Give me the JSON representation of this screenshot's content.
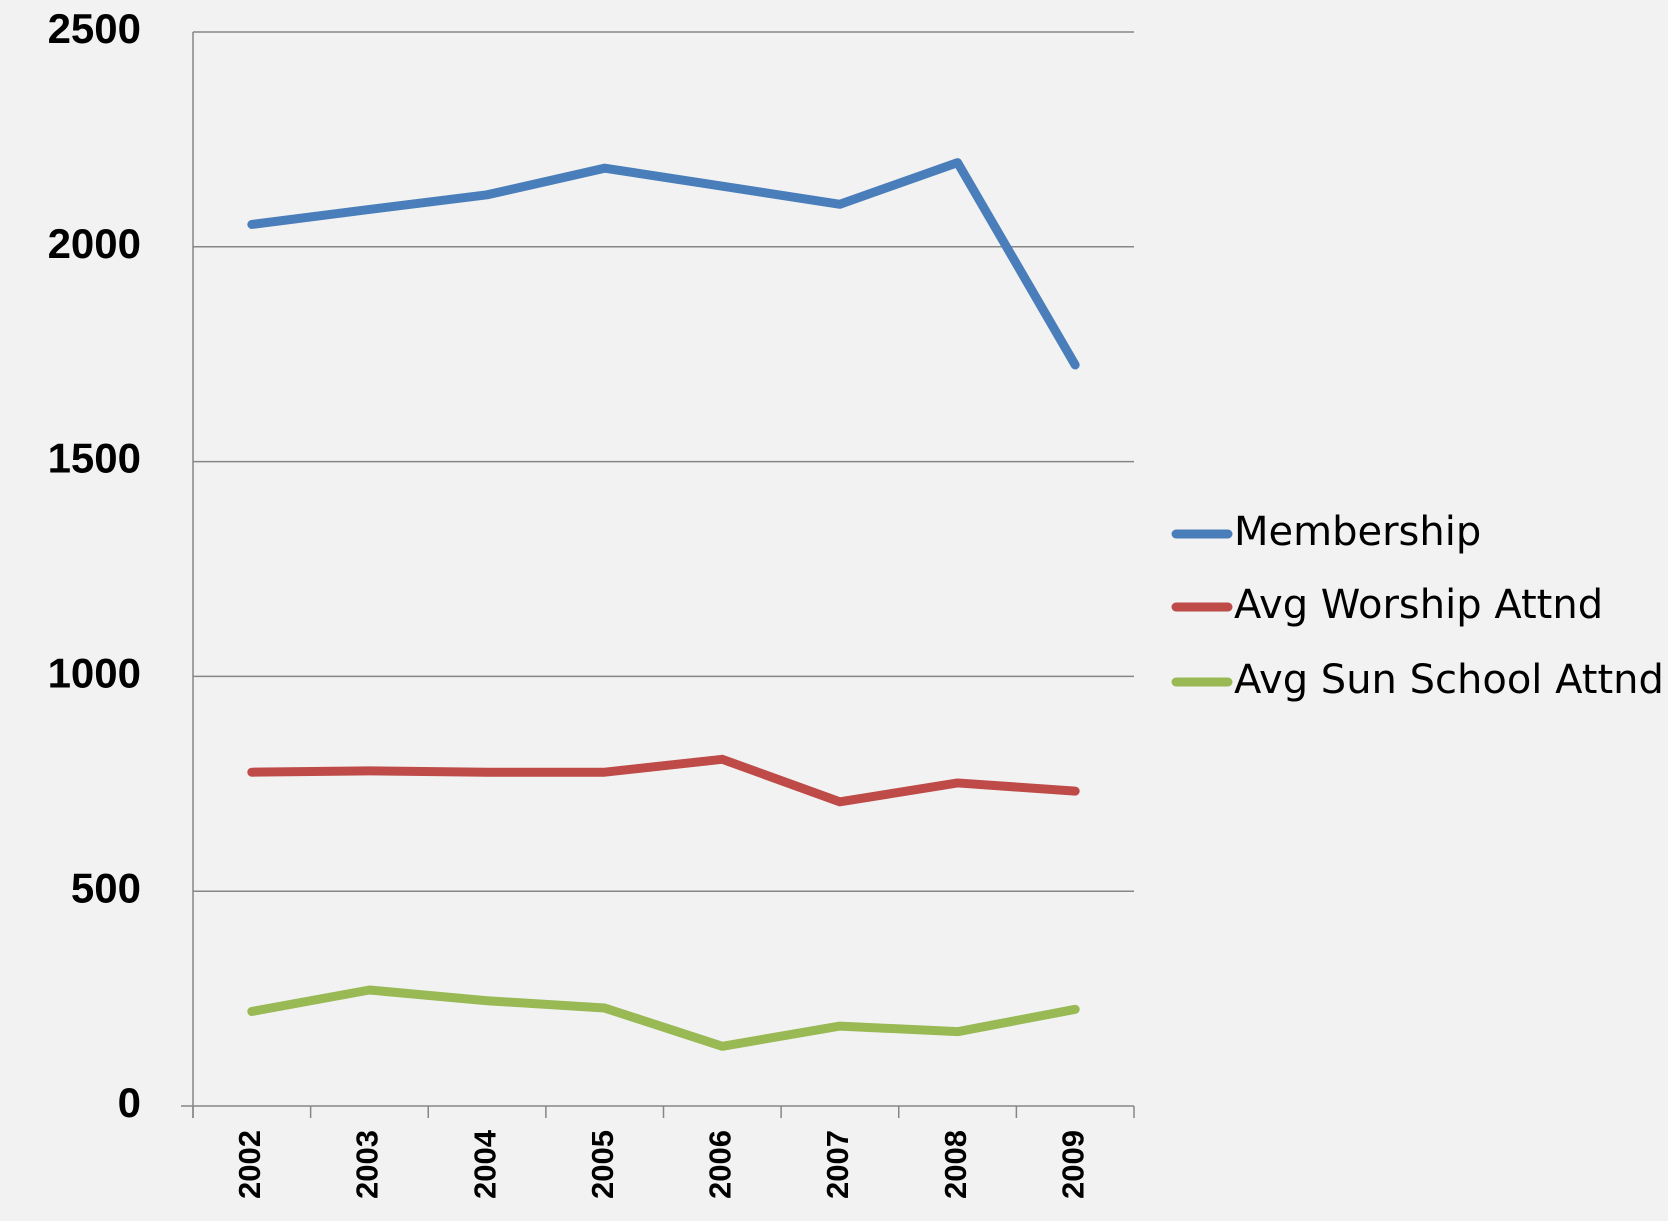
{
  "chart_data": {
    "type": "line",
    "categories": [
      "2002",
      "2003",
      "2004",
      "2005",
      "2006",
      "2007",
      "2008",
      "2009"
    ],
    "series": [
      {
        "name": "Membership",
        "color": "#4a7ebb",
        "values": [
          2052,
          2087,
          2121,
          2183,
          2141,
          2099,
          2196,
          1725
        ]
      },
      {
        "name": "Avg Worship Attnd",
        "color": "#be4b48",
        "values": [
          777,
          780,
          777,
          777,
          807,
          708,
          752,
          733
        ]
      },
      {
        "name": "Avg Sun School Attnd",
        "color": "#98b954",
        "values": [
          220,
          270,
          245,
          228,
          139,
          186,
          173,
          225
        ]
      }
    ],
    "ylim": [
      0,
      2500
    ],
    "yticks": [
      0,
      500,
      1000,
      1500,
      2000,
      2500
    ],
    "grid": true,
    "legend": "right"
  }
}
